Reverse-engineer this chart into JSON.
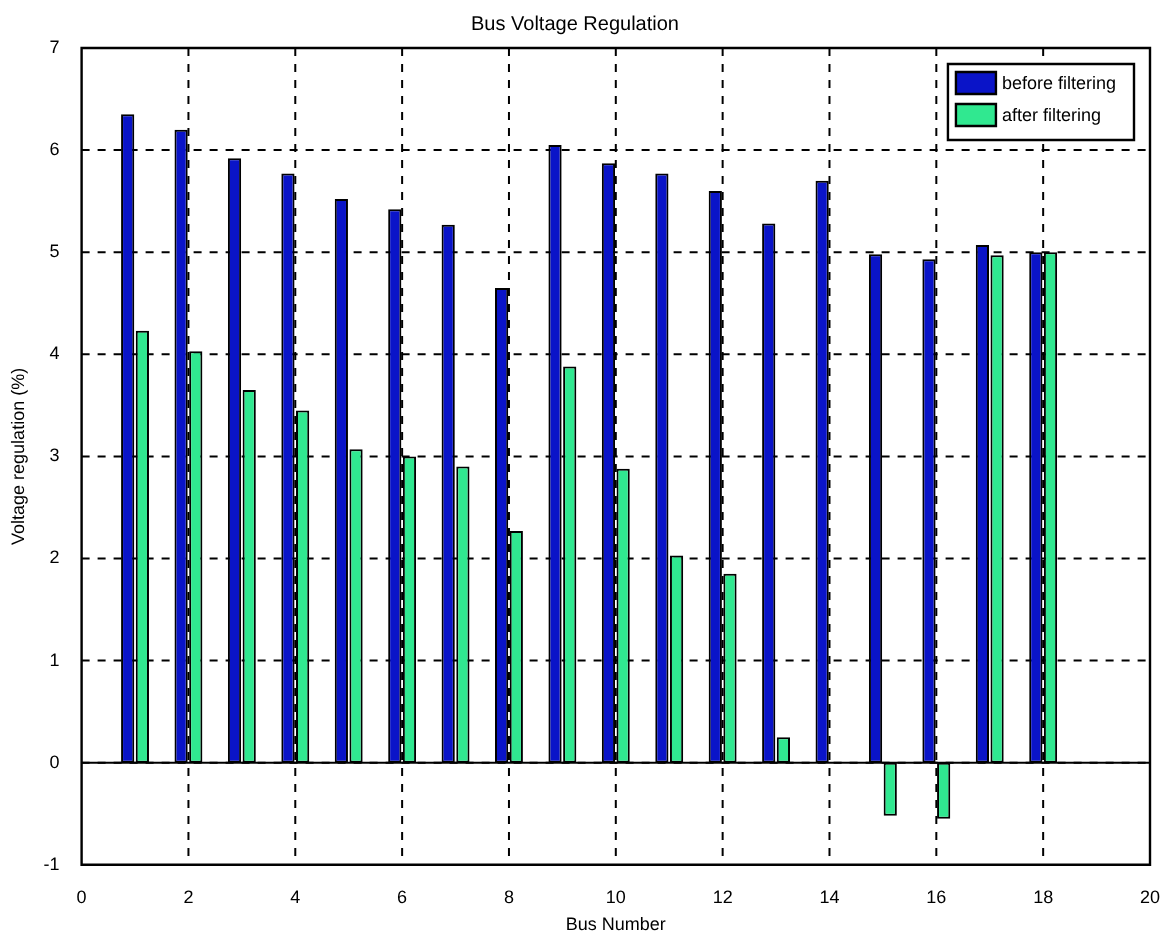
{
  "chart_data": {
    "type": "bar",
    "title": "Bus Voltage Regulation",
    "xlabel": "Bus Number",
    "ylabel": "Voltage regulation (%)",
    "x": [
      1,
      2,
      3,
      4,
      5,
      6,
      7,
      8,
      9,
      10,
      11,
      12,
      13,
      14,
      15,
      16,
      17,
      18
    ],
    "series": [
      {
        "name": "before filtering",
        "color": "#0a14c8",
        "values": [
          6.35,
          6.2,
          5.92,
          5.77,
          5.52,
          5.42,
          5.27,
          4.65,
          6.05,
          5.87,
          5.77,
          5.6,
          5.28,
          5.7,
          4.98,
          4.93,
          5.07,
          5.0
        ]
      },
      {
        "name": "after filtering",
        "color": "#30e890",
        "values": [
          4.23,
          4.03,
          3.65,
          3.45,
          3.07,
          3.0,
          2.9,
          2.27,
          3.88,
          2.88,
          2.03,
          1.85,
          0.25,
          0,
          -0.52,
          -0.55,
          4.97,
          5.0
        ]
      }
    ],
    "xlim": [
      0,
      20
    ],
    "xticks": [
      0,
      2,
      4,
      6,
      8,
      10,
      12,
      14,
      16,
      18,
      20
    ],
    "ylim": [
      -1,
      7
    ],
    "yticks": [
      -1,
      0,
      1,
      2,
      3,
      4,
      5,
      6,
      7
    ],
    "grid": true,
    "legend": "top right"
  }
}
